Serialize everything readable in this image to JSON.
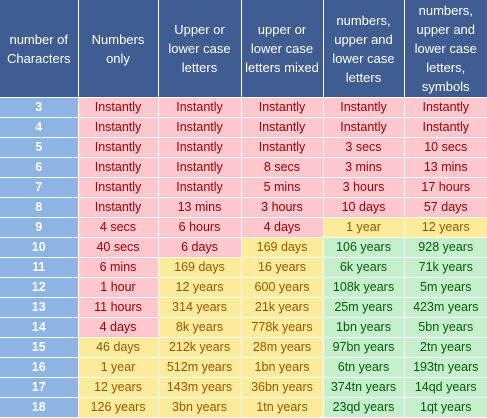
{
  "headers": [
    "number of Characters",
    "Numbers only",
    "Upper or lower case letters",
    "upper or lower case letters mixed",
    "numbers, upper and lower case letters",
    "numbers, upper and lower case letters, symbols"
  ],
  "colors": {
    "header": "#3f5d92",
    "index": "#8eb4e3",
    "red": "#ffc7ce",
    "yellow": "#ffeb9c",
    "green": "#c6efce"
  },
  "rows": [
    {
      "n": "3",
      "cells": [
        [
          "Instantly",
          "red"
        ],
        [
          "Instantly",
          "red"
        ],
        [
          "Instantly",
          "red"
        ],
        [
          "Instantly",
          "red"
        ],
        [
          "Instantly",
          "red"
        ]
      ]
    },
    {
      "n": "4",
      "cells": [
        [
          "Instantly",
          "red"
        ],
        [
          "Instantly",
          "red"
        ],
        [
          "Instantly",
          "red"
        ],
        [
          "Instantly",
          "red"
        ],
        [
          "Instantly",
          "red"
        ]
      ]
    },
    {
      "n": "5",
      "cells": [
        [
          "Instantly",
          "red"
        ],
        [
          "Instantly",
          "red"
        ],
        [
          "Instantly",
          "red"
        ],
        [
          "3 secs",
          "red"
        ],
        [
          "10 secs",
          "red"
        ]
      ]
    },
    {
      "n": "6",
      "cells": [
        [
          "Instantly",
          "red"
        ],
        [
          "Instantly",
          "red"
        ],
        [
          "8 secs",
          "red"
        ],
        [
          "3 mins",
          "red"
        ],
        [
          "13 mins",
          "red"
        ]
      ]
    },
    {
      "n": "7",
      "cells": [
        [
          "Instantly",
          "red"
        ],
        [
          "Instantly",
          "red"
        ],
        [
          "5 mins",
          "red"
        ],
        [
          "3 hours",
          "red"
        ],
        [
          "17 hours",
          "red"
        ]
      ]
    },
    {
      "n": "8",
      "cells": [
        [
          "Instantly",
          "red"
        ],
        [
          "13 mins",
          "red"
        ],
        [
          "3 hours",
          "red"
        ],
        [
          "10 days",
          "red"
        ],
        [
          "57 days",
          "red"
        ]
      ]
    },
    {
      "n": "9",
      "cells": [
        [
          "4 secs",
          "red"
        ],
        [
          "6 hours",
          "red"
        ],
        [
          "4 days",
          "red"
        ],
        [
          "1 year",
          "yellow"
        ],
        [
          "12 years",
          "yellow"
        ]
      ]
    },
    {
      "n": "10",
      "cells": [
        [
          "40 secs",
          "red"
        ],
        [
          "6 days",
          "red"
        ],
        [
          "169 days",
          "yellow"
        ],
        [
          "106 years",
          "green"
        ],
        [
          "928 years",
          "green"
        ]
      ]
    },
    {
      "n": "11",
      "cells": [
        [
          "6 mins",
          "red"
        ],
        [
          "169 days",
          "yellow"
        ],
        [
          "16 years",
          "yellow"
        ],
        [
          "6k years",
          "green"
        ],
        [
          "71k years",
          "green"
        ]
      ]
    },
    {
      "n": "12",
      "cells": [
        [
          "1 hour",
          "red"
        ],
        [
          "12 years",
          "yellow"
        ],
        [
          "600 years",
          "yellow"
        ],
        [
          "108k years",
          "green"
        ],
        [
          "5m years",
          "green"
        ]
      ]
    },
    {
      "n": "13",
      "cells": [
        [
          "11 hours",
          "red"
        ],
        [
          "314 years",
          "yellow"
        ],
        [
          "21k years",
          "yellow"
        ],
        [
          "25m years",
          "green"
        ],
        [
          "423m years",
          "green"
        ]
      ]
    },
    {
      "n": "14",
      "cells": [
        [
          "4 days",
          "red"
        ],
        [
          "8k years",
          "yellow"
        ],
        [
          "778k years",
          "yellow"
        ],
        [
          "1bn years",
          "green"
        ],
        [
          "5bn years",
          "green"
        ]
      ]
    },
    {
      "n": "15",
      "cells": [
        [
          "46 days",
          "yellow"
        ],
        [
          "212k years",
          "yellow"
        ],
        [
          "28m years",
          "yellow"
        ],
        [
          "97bn years",
          "green"
        ],
        [
          "2tn years",
          "green"
        ]
      ]
    },
    {
      "n": "16",
      "cells": [
        [
          "1 year",
          "yellow"
        ],
        [
          "512m years",
          "yellow"
        ],
        [
          "1bn years",
          "yellow"
        ],
        [
          "6tn years",
          "green"
        ],
        [
          "193tn years",
          "green"
        ]
      ]
    },
    {
      "n": "17",
      "cells": [
        [
          "12 years",
          "yellow"
        ],
        [
          "143m years",
          "yellow"
        ],
        [
          "36bn years",
          "yellow"
        ],
        [
          "374tn years",
          "green"
        ],
        [
          "14qd years",
          "green"
        ]
      ]
    },
    {
      "n": "18",
      "cells": [
        [
          "126 years",
          "yellow"
        ],
        [
          "3bn years",
          "yellow"
        ],
        [
          "1tn years",
          "yellow"
        ],
        [
          "23qd years",
          "green"
        ],
        [
          "1qt years",
          "green"
        ]
      ]
    }
  ]
}
